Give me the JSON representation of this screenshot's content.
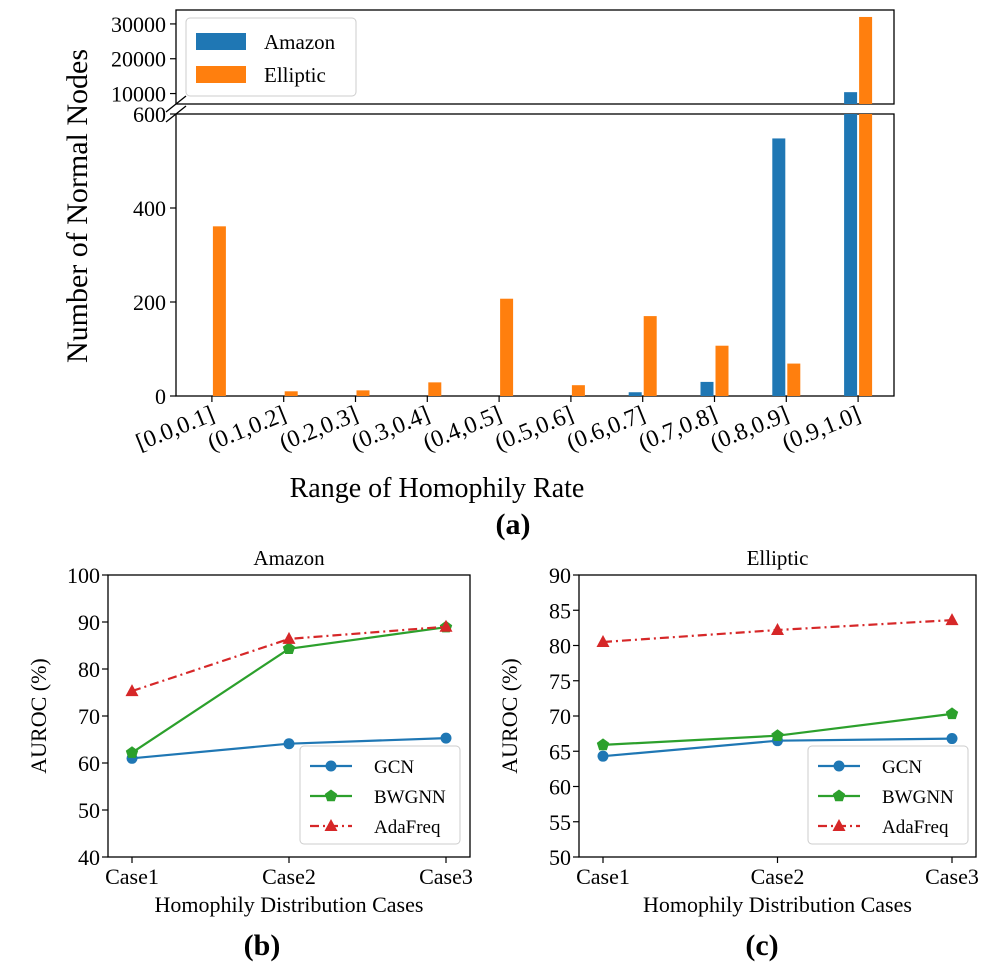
{
  "panels": {
    "a": {
      "label": "(a)"
    },
    "b": {
      "label": "(b)"
    },
    "c": {
      "label": "(c)"
    }
  },
  "colors": {
    "amazon": "#1f77b4",
    "elliptic": "#ff7f0e",
    "gcn": "#1f77b4",
    "bwgnn": "#2ca02c",
    "adafreq": "#d62728"
  },
  "chart_data": [
    {
      "id": "a",
      "type": "bar",
      "title": "",
      "xlabel": "Range of Homophily Rate",
      "ylabel": "Number of Normal Nodes",
      "categories": [
        "[0.0,0.1]",
        "(0.1,0.2]",
        "(0.2,0.3]",
        "(0.3,0.4]",
        "(0.4,0.5]",
        "(0.5,0.6]",
        "(0.6,0.7]",
        "(0.7,0.8]",
        "(0.8,0.9]",
        "(0.9,1.0]"
      ],
      "series": [
        {
          "name": "Amazon",
          "values": [
            0,
            0,
            0,
            0,
            0,
            0,
            8,
            30,
            548,
            10400
          ]
        },
        {
          "name": "Elliptic",
          "values": [
            361,
            10,
            12,
            29,
            207,
            23,
            170,
            107,
            69,
            32000
          ]
        }
      ],
      "lower_axis": {
        "ylim": [
          0,
          600
        ],
        "ticks": [
          0,
          200,
          400,
          600
        ]
      },
      "upper_axis": {
        "ylim": [
          7000,
          34000
        ],
        "ticks": [
          10000,
          20000,
          30000
        ]
      },
      "axis_break": true,
      "legend": "top-left"
    },
    {
      "id": "b",
      "type": "line",
      "title": "Amazon",
      "xlabel": "Homophily Distribution Cases",
      "ylabel": "AUROC (%)",
      "categories": [
        "Case1",
        "Case2",
        "Case3"
      ],
      "ylim": [
        40,
        100
      ],
      "yticks": [
        40,
        50,
        60,
        70,
        80,
        90,
        100
      ],
      "series": [
        {
          "name": "GCN",
          "values": [
            61.0,
            64.1,
            65.3
          ]
        },
        {
          "name": "BWGNN",
          "values": [
            62.2,
            84.3,
            88.9
          ]
        },
        {
          "name": "AdaFreq",
          "values": [
            75.3,
            86.4,
            89.0
          ]
        }
      ],
      "legend": "bottom-right"
    },
    {
      "id": "c",
      "type": "line",
      "title": "Elliptic",
      "xlabel": "Homophily Distribution Cases",
      "ylabel": "AUROC (%)",
      "categories": [
        "Case1",
        "Case2",
        "Case3"
      ],
      "ylim": [
        50,
        90
      ],
      "yticks": [
        50,
        55,
        60,
        65,
        70,
        75,
        80,
        85,
        90
      ],
      "series": [
        {
          "name": "GCN",
          "values": [
            64.3,
            66.5,
            66.8
          ]
        },
        {
          "name": "BWGNN",
          "values": [
            65.9,
            67.2,
            70.3
          ]
        },
        {
          "name": "AdaFreq",
          "values": [
            80.5,
            82.2,
            83.6
          ]
        }
      ],
      "legend": "bottom-right"
    }
  ]
}
